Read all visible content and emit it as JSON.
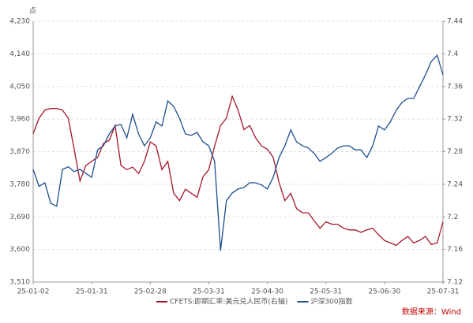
{
  "chart_data": {
    "type": "line",
    "y_unit_label": "点",
    "source": "数据来源：Wind",
    "categories": [
      "25-01-02",
      null,
      null,
      null,
      null,
      null,
      null,
      null,
      null,
      null,
      "25-01-31",
      null,
      null,
      null,
      null,
      null,
      null,
      null,
      null,
      null,
      "25-02-28",
      null,
      null,
      null,
      null,
      null,
      null,
      null,
      null,
      null,
      "25-03-31",
      null,
      null,
      null,
      null,
      null,
      null,
      null,
      null,
      null,
      "25-04-30",
      null,
      null,
      null,
      null,
      null,
      null,
      null,
      null,
      null,
      "25-05-31",
      null,
      null,
      null,
      null,
      null,
      null,
      null,
      null,
      null,
      "25-06-30",
      null,
      null,
      null,
      null,
      null,
      null,
      null,
      null,
      null,
      "25-07-31"
    ],
    "series": [
      {
        "name": "CFETS:即期汇率:美元兑人民币(右轴)",
        "color": "#a5182a",
        "axis": "y2",
        "values": [
          7.302,
          7.321,
          7.331,
          7.333,
          7.333,
          7.331,
          7.321,
          7.283,
          7.244,
          7.263,
          7.268,
          7.273,
          7.29,
          7.294,
          7.312,
          7.263,
          7.258,
          7.261,
          7.253,
          7.268,
          7.292,
          7.287,
          7.258,
          7.268,
          7.229,
          7.22,
          7.234,
          7.229,
          7.224,
          7.249,
          7.258,
          7.287,
          7.312,
          7.321,
          7.348,
          7.331,
          7.307,
          7.312,
          7.297,
          7.287,
          7.283,
          7.273,
          7.242,
          7.22,
          7.229,
          7.21,
          7.205,
          7.205,
          7.195,
          7.186,
          7.194,
          7.191,
          7.191,
          7.186,
          7.184,
          7.184,
          7.181,
          7.184,
          7.186,
          7.178,
          7.171,
          7.168,
          7.165,
          7.171,
          7.176,
          7.168,
          7.171,
          7.176,
          7.166,
          7.168,
          7.194
        ]
      },
      {
        "name": "沪深300指数",
        "color": "#1d4e8f",
        "values": [
          3821,
          3774,
          3784,
          3728,
          3719,
          3821,
          3828,
          3815,
          3821,
          3810,
          3799,
          3875,
          3886,
          3919,
          3941,
          3945,
          3908,
          3973,
          3919,
          3886,
          3908,
          3952,
          3941,
          4010,
          3995,
          3962,
          3919,
          3915,
          3923,
          3897,
          3886,
          3843,
          3597,
          3734,
          3756,
          3767,
          3771,
          3784,
          3784,
          3778,
          3767,
          3799,
          3854,
          3886,
          3930,
          3897,
          3886,
          3880,
          3865,
          3843,
          3854,
          3865,
          3880,
          3886,
          3886,
          3875,
          3875,
          3854,
          3886,
          3941,
          3930,
          3952,
          3984,
          4006,
          4017,
          4017,
          4049,
          4082,
          4119,
          4136,
          4082
        ]
      }
    ],
    "ylim": [
      3510,
      4230
    ],
    "yticks": [
      {
        "value": 3510,
        "label": "3,510"
      },
      {
        "value": 3600,
        "label": "3,600"
      },
      {
        "value": 3690,
        "label": "3,690"
      },
      {
        "value": 3780,
        "label": "3,780"
      },
      {
        "value": 3870,
        "label": "3,870"
      },
      {
        "value": 3960,
        "label": "3,960"
      },
      {
        "value": 4050,
        "label": "4,050"
      },
      {
        "value": 4140,
        "label": "4,140"
      },
      {
        "value": 4230,
        "label": "4,230"
      }
    ],
    "y2lim": [
      7.12,
      7.44
    ],
    "y2ticks": [
      7.12,
      7.16,
      7.2,
      7.24,
      7.28,
      7.32,
      7.36,
      7.4,
      7.44
    ],
    "grid": true
  }
}
